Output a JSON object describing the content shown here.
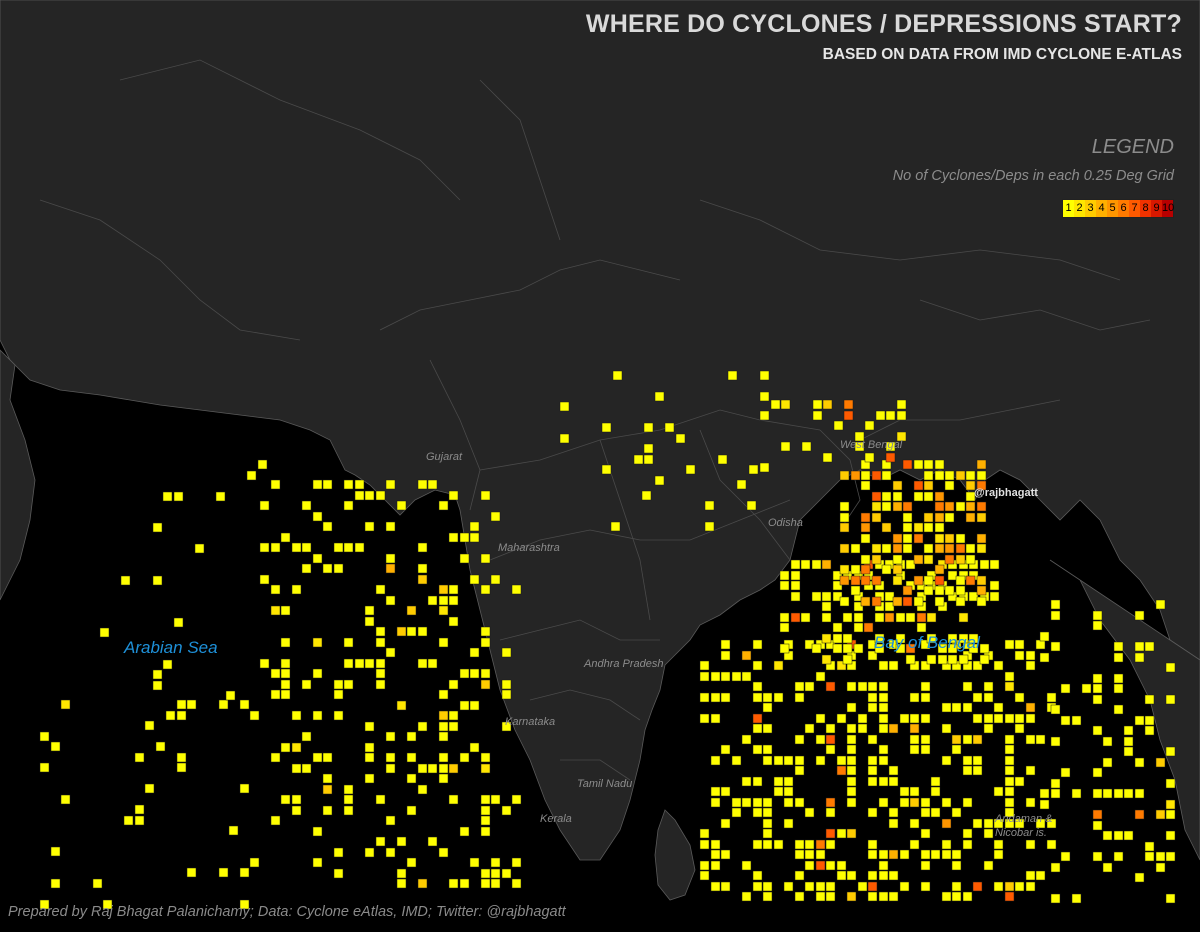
{
  "title": "WHERE DO CYCLONES / DEPRESSIONS START?",
  "subtitle": "BASED ON DATA FROM IMD CYCLONE E-ATLAS",
  "legend": {
    "title": "LEGEND",
    "subtitle": "No of Cyclones/Deps in each 0.25 Deg Grid",
    "scale": [
      "1",
      "2",
      "3",
      "4",
      "5",
      "6",
      "7",
      "8",
      "9",
      "10"
    ],
    "colors": [
      "#ffff00",
      "#ffe600",
      "#ffcc00",
      "#ffb000",
      "#ff9600",
      "#ff7a00",
      "#ff5a00",
      "#f03200",
      "#d81800",
      "#b80000"
    ]
  },
  "labels": {
    "arabian_sea": "Arabian Sea",
    "bay_of_bengal": "Bay of Bengal",
    "gujarat": "Gujarat",
    "maharashtra": "Maharashtra",
    "andhra_pradesh": "Andhra Pradesh",
    "karnataka": "Karnataka",
    "tamil_nadu": "Tamil Nadu",
    "kerala": "Kerala",
    "odisha": "Odisha",
    "west_bengal": "West Bengal",
    "andaman": "Andaman &",
    "nicobar": "Nicobar is."
  },
  "handle": "@rajbhagatt",
  "credit": "Prepared by Raj Bhagat Palanichamy; Data: Cyclone eAtlas, IMD; Twitter: @rajbhagatt",
  "colors": {
    "sea": "#000000",
    "land": "#252525",
    "border": "#5a5a5a",
    "cell_stroke": "#1a1a1a"
  }
}
